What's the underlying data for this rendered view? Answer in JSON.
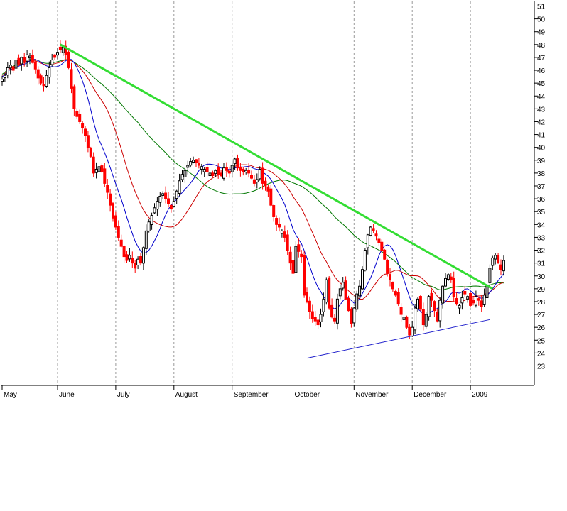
{
  "chart_data": {
    "type": "candlestick",
    "title": "",
    "xlabel": "",
    "ylabel": "",
    "ylim": [
      22,
      51.5
    ],
    "y_ticks": [
      23,
      24,
      25,
      26,
      27,
      28,
      29,
      30,
      31,
      32,
      33,
      34,
      35,
      36,
      37,
      38,
      39,
      40,
      41,
      42,
      43,
      44,
      45,
      46,
      47,
      48,
      49,
      50,
      51
    ],
    "grid": "vertical-dashed-at-month-starts",
    "x_categories": [
      "May",
      "June",
      "July",
      "August",
      "September",
      "October",
      "November",
      "December",
      "2009"
    ],
    "x_tick_index": [
      0,
      20,
      41,
      62,
      83,
      105,
      127,
      148,
      169
    ],
    "colors": {
      "up_candle": "#000000",
      "down_candle": "#ff0000",
      "ma_short": "#0000cc",
      "ma_mid": "#cc0000",
      "ma_long": "#007700",
      "trendline_resistance": "#33dd33",
      "trendline_support": "#2222cc",
      "grid": "#999999"
    },
    "closes": [
      45.3,
      45.6,
      46.2,
      46.4,
      46.0,
      46.8,
      46.5,
      47.0,
      46.7,
      47.2,
      47.1,
      46.6,
      46.1,
      45.4,
      45.0,
      44.8,
      45.6,
      46.2,
      46.8,
      47.0,
      47.4,
      47.6,
      47.8,
      47.2,
      46.2,
      44.6,
      43.0,
      42.4,
      42.0,
      41.5,
      40.9,
      40.0,
      39.3,
      38.0,
      38.3,
      38.5,
      38.1,
      37.2,
      36.5,
      35.5,
      34.5,
      33.8,
      33.0,
      32.3,
      31.5,
      31.2,
      31.6,
      31.0,
      30.6,
      31.3,
      31.0,
      32.2,
      33.5,
      34.2,
      34.7,
      35.3,
      35.8,
      36.2,
      36.4,
      36.0,
      35.6,
      35.2,
      35.8,
      36.6,
      37.4,
      37.9,
      38.2,
      38.6,
      38.9,
      39.0,
      38.8,
      38.6,
      38.5,
      38.3,
      38.1,
      38.0,
      37.8,
      38.2,
      37.9,
      37.8,
      38.4,
      38.2,
      38.0,
      38.6,
      39.1,
      38.4,
      38.2,
      38.1,
      38.2,
      38.0,
      37.6,
      37.2,
      37.5,
      38.3,
      37.2,
      37.0,
      36.6,
      35.5,
      34.6,
      34.0,
      33.8,
      33.5,
      33.0,
      32.0,
      31.0,
      30.2,
      32.3,
      31.9,
      31.5,
      28.5,
      28.0,
      27.2,
      26.7,
      26.5,
      26.2,
      27.0,
      28.2,
      29.7,
      27.5,
      26.8,
      26.5,
      28.2,
      29.0,
      29.5,
      28.2,
      27.3,
      26.3,
      27.5,
      28.6,
      29.2,
      30.5,
      32.0,
      33.2,
      33.8,
      33.5,
      33.1,
      32.6,
      32.0,
      31.3,
      30.2,
      29.7,
      29.0,
      28.5,
      27.8,
      27.0,
      26.8,
      26.0,
      25.4,
      26.0,
      27.5,
      28.2,
      27.4,
      26.2,
      27.0,
      28.4,
      28.1,
      27.3,
      26.5,
      28.1,
      29.2,
      29.8,
      30.1,
      29.7,
      28.4,
      27.8,
      27.7,
      28.3,
      28.6,
      28.4,
      27.7,
      27.9,
      28.4,
      28.1,
      27.6,
      28.5,
      29.3,
      30.6,
      31.4,
      31.6,
      31.0,
      30.5,
      31.2
    ],
    "annotations": {
      "resistance_line": {
        "from": [
          21,
          48.0
        ],
        "to": [
          177,
          29.0
        ]
      },
      "support_line": {
        "from": [
          110,
          23.6
        ],
        "to": [
          176,
          26.6
        ]
      }
    }
  }
}
